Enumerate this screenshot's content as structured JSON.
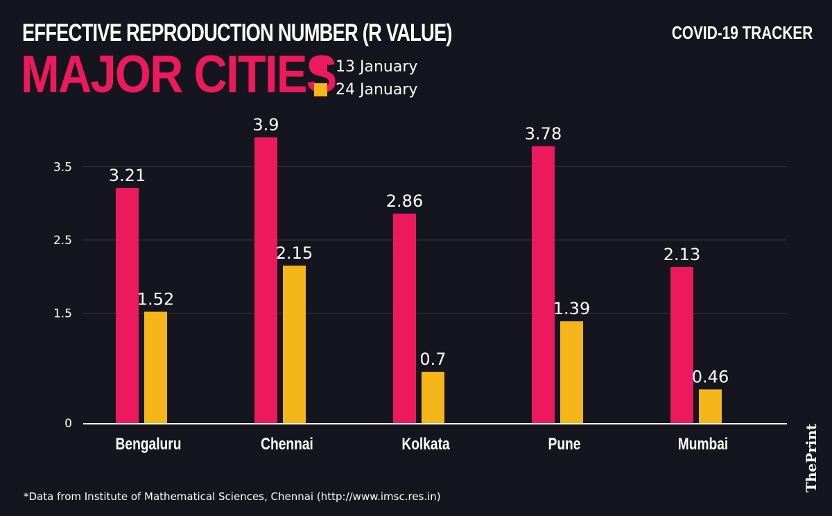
{
  "header": {
    "title": "EFFECTIVE REPRODUCTION NUMBER (R VALUE)",
    "subtitle": "MAJOR CITIES",
    "tracker": "COVID-19 TRACKER"
  },
  "footnote": "*Data from Institute of Mathematical Sciences, Chennai (http://www.imsc.res.in)",
  "brand": "ThePrint",
  "chart_data": {
    "type": "bar",
    "title": "EFFECTIVE REPRODUCTION NUMBER (R VALUE)",
    "subtitle": "MAJOR CITIES",
    "categories": [
      "Bengaluru",
      "Chennai",
      "Kolkata",
      "Pune",
      "Mumbai"
    ],
    "series": [
      {
        "name": "13 January",
        "color": "#ec1a5c",
        "values": [
          3.21,
          3.9,
          2.86,
          3.78,
          2.13
        ]
      },
      {
        "name": "24 January",
        "color": "#f5b61a",
        "values": [
          1.52,
          2.15,
          0.7,
          1.39,
          0.46
        ]
      }
    ],
    "yticks": [
      0,
      1.5,
      2.5,
      3.5
    ],
    "ytick_labels": [
      "0",
      "1.5",
      "2.5",
      "3.5"
    ],
    "ylim": [
      0,
      3.9
    ],
    "grid": true,
    "legend": "top-left"
  }
}
